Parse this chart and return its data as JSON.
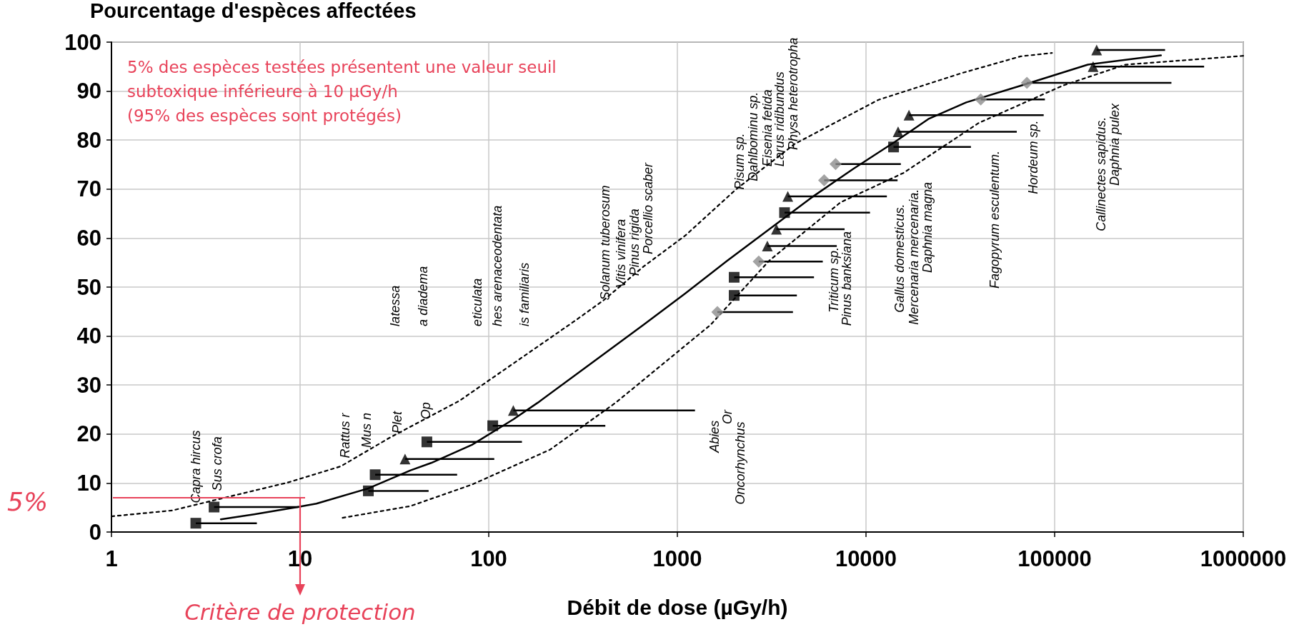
{
  "chart_data": {
    "type": "scatter",
    "ylabel": "Pourcentage d'espèces affectées",
    "xlabel": "Débit de dose (µGy/h)",
    "log": "x",
    "grid": true,
    "xlim": [
      1,
      1000000
    ],
    "xticks": [
      1,
      10,
      100,
      1000,
      10000,
      100000,
      1000000
    ],
    "ylim": [
      0,
      100
    ],
    "yticks": [
      0,
      10,
      20,
      30,
      40,
      50,
      60,
      70,
      80,
      90,
      100
    ],
    "series": [
      {
        "marker": "square",
        "color": "#000000",
        "x": [
          2.8,
          3.5,
          23,
          25,
          47,
          105,
          2000,
          2000,
          3700,
          14000
        ],
        "values": [
          1.8,
          5.1,
          8.4,
          11.7,
          18.4,
          21.7,
          48.3,
          52.0,
          65.2,
          78.6
        ],
        "xerrors": [
          [
            2.8,
            5.9
          ],
          [
            3.5,
            9.8
          ],
          [
            23,
            48
          ],
          [
            25,
            68
          ],
          [
            47,
            150
          ],
          [
            105,
            415
          ],
          [
            2000,
            4300
          ],
          [
            2000,
            5300
          ],
          [
            3700,
            10500
          ],
          [
            14000,
            36000
          ]
        ]
      },
      {
        "marker": "triangle",
        "color": "#000000",
        "x": [
          36,
          135,
          3000,
          3350,
          3850,
          14800,
          16900,
          160000,
          167000
        ],
        "values": [
          14.9,
          24.8,
          58.4,
          61.8,
          68.5,
          81.7,
          85.1,
          95.0,
          98.4
        ],
        "xerrors": [
          [
            36,
            107
          ],
          [
            135,
            1240
          ],
          [
            3000,
            7000
          ],
          [
            3350,
            7700
          ],
          [
            3850,
            12900
          ],
          [
            14800,
            63000
          ],
          [
            16900,
            87500
          ],
          [
            160000,
            620000
          ],
          [
            167000,
            385000
          ]
        ]
      },
      {
        "marker": "diamond",
        "color": "#8c8c8c",
        "x": [
          1630,
          2700,
          6000,
          6900,
          40600,
          71300
        ],
        "values": [
          44.9,
          55.2,
          71.8,
          75.1,
          88.3,
          91.7
        ],
        "xerrors": [
          [
            1630,
            4100
          ],
          [
            2700,
            5900
          ],
          [
            6000,
            14700
          ],
          [
            6900,
            15300
          ],
          [
            40600,
            88800
          ],
          [
            71300,
            416000
          ]
        ]
      },
      {
        "type": "line",
        "line_style": "solid",
        "color": "#000000",
        "x": [
          3.8,
          5.7,
          9.7,
          12.2,
          23,
          38.5,
          49.5,
          81.5,
          135,
          182,
          662,
          1100,
          1840,
          3070,
          5110,
          8530,
          14300,
          21400,
          34000,
          66100,
          150000,
          366000
        ],
        "values": [
          2.6,
          3.6,
          5.1,
          5.8,
          8.9,
          12.6,
          14.1,
          17.8,
          23.0,
          26.4,
          42.3,
          48.7,
          55.4,
          61.8,
          68.2,
          74.1,
          79.7,
          84.3,
          87.7,
          91.1,
          95.4,
          97.3
        ]
      },
      {
        "type": "line",
        "line_style": "dashed",
        "color": "#000000",
        "x": [
          1,
          2.1,
          3.6,
          8.6,
          16.4,
          30,
          70,
          286,
          406,
          662,
          1100,
          2040,
          4180,
          11600,
          32300,
          66100,
          96800
        ],
        "values": [
          3.2,
          4.4,
          6.6,
          10.1,
          13.4,
          19.3,
          26.8,
          43.1,
          47.3,
          54.2,
          60.5,
          69.9,
          79.2,
          88.2,
          93.7,
          97.1,
          97.8
        ]
      },
      {
        "type": "line",
        "line_style": "dashed",
        "color": "#000000",
        "x": [
          16.8,
          38.5,
          81.7,
          211,
          471,
          1500,
          3070,
          7330,
          15800,
          39600,
          110000,
          237000,
          1000000
        ],
        "values": [
          2.9,
          5.3,
          9.7,
          16.8,
          26.4,
          42.3,
          55.4,
          67.3,
          73.3,
          83.5,
          91.1,
          95.4,
          97.2
        ]
      }
    ],
    "annotations": [
      "5% des espèces testées présentent une valeur seuil subtoxique inférieure à 10 µGy/h",
      "(95% des espèces sont protégés)",
      "5%",
      "Critère de protection",
      "latessa",
      "a diadema",
      "eticulata",
      "hes arenaceodentata",
      "is familiaris",
      "Solanum tuberosum",
      "Vitis vinifera",
      "Pinus rigida",
      "Porcellio scaber",
      "Pisum sp.",
      "Dahlbominu sp.",
      "Eisenia fetida",
      "Larus ridibundus",
      "Physa heterotropha",
      "Triticum sp.",
      "Pinus banksiana",
      "Gallus domesticus.",
      "Mercenaria mercenaria.",
      "Daphnia magna",
      "Fagopyrum esculentum.",
      "Hordeum sp.",
      "Callinectes sapidus.",
      "Daphnia pulex",
      "Capra hircus",
      "Sus crofa",
      "Rattus r",
      "Mus n",
      "Plet",
      "Op",
      "Abies",
      "Or",
      "Oncorhynchus"
    ]
  }
}
